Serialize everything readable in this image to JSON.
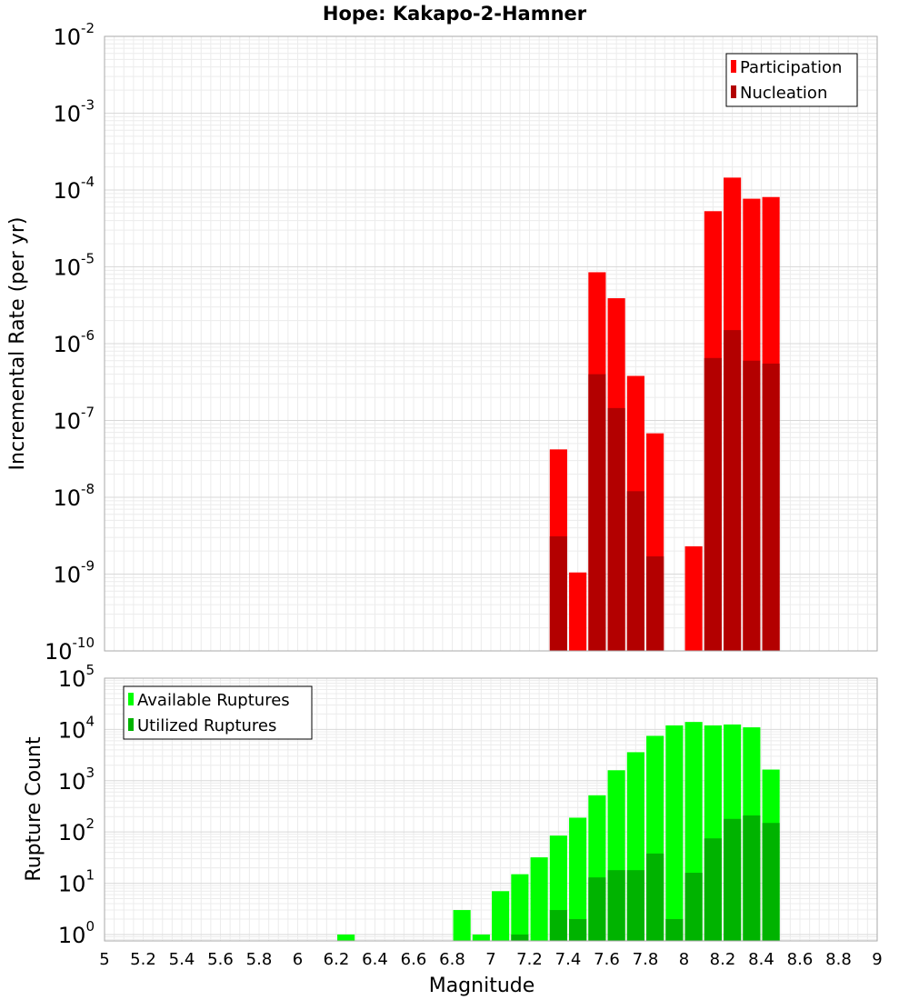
{
  "title": "Hope: Kakapo-2-Hamner",
  "chart_data": [
    {
      "type": "bar",
      "panel": "rate",
      "ylabel": "Incremental Rate (per yr)",
      "yscale": "log",
      "ylim": [
        1e-10,
        0.01
      ],
      "xlim": [
        5,
        9
      ],
      "y_ticks": [
        {
          "base": "10",
          "exp": "-10",
          "value": 1e-10
        },
        {
          "base": "10",
          "exp": "-9",
          "value": 1e-09
        },
        {
          "base": "10",
          "exp": "-8",
          "value": 1e-08
        },
        {
          "base": "10",
          "exp": "-7",
          "value": 1e-07
        },
        {
          "base": "10",
          "exp": "-6",
          "value": 1e-06
        },
        {
          "base": "10",
          "exp": "-5",
          "value": 1e-05
        },
        {
          "base": "10",
          "exp": "-4",
          "value": 0.0001
        },
        {
          "base": "10",
          "exp": "-3",
          "value": 0.001
        },
        {
          "base": "10",
          "exp": "-2",
          "value": 0.01
        }
      ],
      "legend": {
        "position": "top-right",
        "entries": [
          {
            "label": "Participation",
            "color": "#ff0000"
          },
          {
            "label": "Nucleation",
            "color": "#b30000"
          }
        ]
      },
      "series": [
        {
          "name": "Participation",
          "color": "#ff0000",
          "x": [
            7.35,
            7.45,
            7.55,
            7.65,
            7.75,
            7.85,
            8.05,
            8.15,
            8.25,
            8.35,
            8.45
          ],
          "values": [
            4.2e-08,
            1.05e-09,
            8.5e-06,
            3.9e-06,
            3.8e-07,
            6.8e-08,
            2.3e-09,
            5.3e-05,
            0.000145,
            7.7e-05,
            8.1e-05
          ]
        },
        {
          "name": "Nucleation",
          "color": "#b30000",
          "x": [
            7.35,
            7.55,
            7.65,
            7.75,
            7.85,
            8.15,
            8.25,
            8.35,
            8.45
          ],
          "values": [
            3.1e-09,
            4e-07,
            1.45e-07,
            1.2e-08,
            1.7e-09,
            6.5e-07,
            1.5e-06,
            6e-07,
            5.5e-07
          ]
        }
      ]
    },
    {
      "type": "bar",
      "panel": "count",
      "xlabel": "Magnitude",
      "ylabel": "Rupture Count",
      "yscale": "log",
      "ylim": [
        0.75,
        100000.0
      ],
      "xlim": [
        5,
        9
      ],
      "x_ticks": [
        "5",
        "5.2",
        "5.4",
        "5.6",
        "5.8",
        "6",
        "6.2",
        "6.4",
        "6.6",
        "6.8",
        "7",
        "7.2",
        "7.4",
        "7.6",
        "7.8",
        "8",
        "8.2",
        "8.4",
        "8.6",
        "8.8",
        "9"
      ],
      "y_ticks": [
        {
          "base": "10",
          "exp": "0",
          "value": 1
        },
        {
          "base": "10",
          "exp": "1",
          "value": 10
        },
        {
          "base": "10",
          "exp": "2",
          "value": 100
        },
        {
          "base": "10",
          "exp": "3",
          "value": 1000
        },
        {
          "base": "10",
          "exp": "4",
          "value": 10000
        },
        {
          "base": "10",
          "exp": "5",
          "value": 100000
        }
      ],
      "legend": {
        "position": "top-left",
        "entries": [
          {
            "label": "Available Ruptures",
            "color": "#00ff00"
          },
          {
            "label": "Utilized Ruptures",
            "color": "#00b300"
          }
        ]
      },
      "series": [
        {
          "name": "Available Ruptures",
          "color": "#00ff00",
          "x": [
            6.25,
            6.85,
            6.95,
            7.05,
            7.15,
            7.25,
            7.35,
            7.45,
            7.55,
            7.65,
            7.75,
            7.85,
            7.95,
            8.05,
            8.15,
            8.25,
            8.35,
            8.45
          ],
          "values": [
            1,
            3,
            1,
            7,
            15,
            32,
            85,
            190,
            520,
            1600,
            3600,
            7500,
            12000,
            14000,
            12000,
            12500,
            11000,
            1650
          ]
        },
        {
          "name": "Utilized Ruptures",
          "color": "#00b300",
          "x": [
            7.15,
            7.35,
            7.45,
            7.55,
            7.65,
            7.75,
            7.85,
            7.95,
            8.05,
            8.15,
            8.25,
            8.35,
            8.45
          ],
          "values": [
            1,
            3,
            2,
            13,
            18,
            18,
            38,
            2,
            16,
            75,
            180,
            210,
            150
          ]
        }
      ]
    }
  ]
}
